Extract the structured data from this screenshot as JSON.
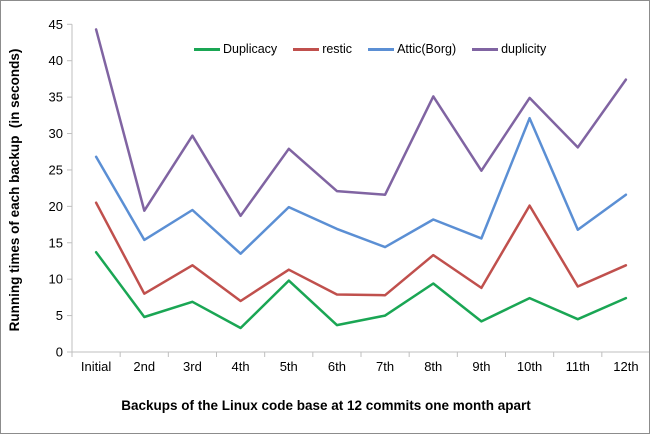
{
  "style": {
    "background": "#FFFFFF",
    "border_color": "#8C8C8C",
    "axis_color": "#BFBFBF",
    "text_color": "#000000"
  },
  "chart_data": {
    "type": "line",
    "xlabel": "Backups of the Linux code base at 12 commits one month apart",
    "ylabel": "Running times of each backup  (in seconds)",
    "categories": [
      "Initial",
      "2nd",
      "3rd",
      "4th",
      "5th",
      "6th",
      "7th",
      "8th",
      "9th",
      "10th",
      "11th",
      "12th"
    ],
    "ylim": [
      0,
      45
    ],
    "ytick_step": 5,
    "grid": false,
    "markers": false,
    "legend_position": "top-center",
    "series": [
      {
        "name": "Duplicacy",
        "color": "#1AA654",
        "values": [
          13.7,
          4.8,
          6.9,
          3.3,
          9.8,
          3.7,
          5.0,
          9.4,
          4.2,
          7.4,
          4.5,
          7.4
        ]
      },
      {
        "name": "restic",
        "color": "#C0504D",
        "values": [
          20.5,
          8.0,
          11.9,
          7.0,
          11.3,
          7.9,
          7.8,
          13.3,
          8.8,
          20.1,
          9.0,
          11.9
        ]
      },
      {
        "name": "Attic(Borg)",
        "color": "#5B8FD4",
        "values": [
          26.8,
          15.4,
          19.5,
          13.5,
          19.9,
          16.9,
          14.4,
          18.2,
          15.6,
          32.1,
          16.8,
          21.6
        ]
      },
      {
        "name": "duplicity",
        "color": "#8064A2",
        "values": [
          44.3,
          19.4,
          29.7,
          18.7,
          27.9,
          22.1,
          21.6,
          35.1,
          24.9,
          34.9,
          28.1,
          37.4
        ]
      }
    ]
  }
}
